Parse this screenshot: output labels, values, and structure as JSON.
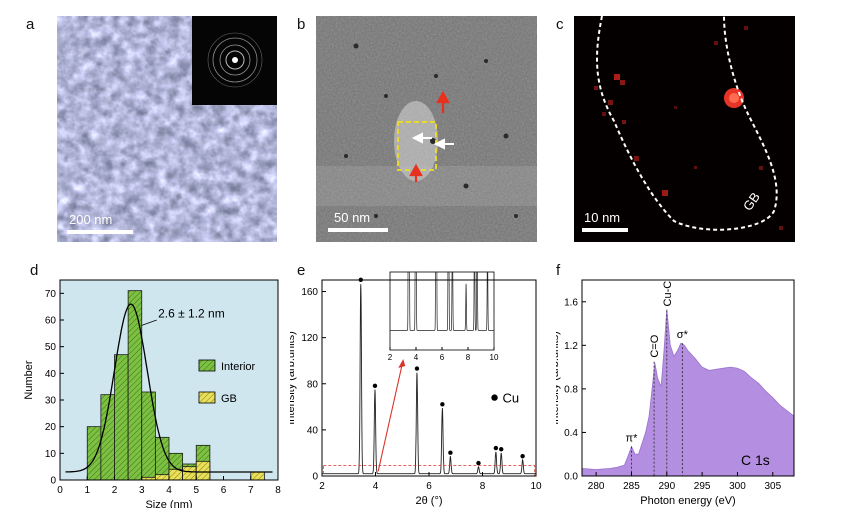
{
  "panels": {
    "a": {
      "label": "a",
      "scale_label": "200 nm"
    },
    "b": {
      "label": "b",
      "scale_label": "50 nm"
    },
    "c": {
      "label": "c",
      "scale_label": "10 nm",
      "gb_label": "GB"
    },
    "d": {
      "label": "d"
    },
    "e": {
      "label": "e"
    },
    "f": {
      "label": "f"
    }
  },
  "colors": {
    "bg_d": "#cfe6ef",
    "interior": "#7dc142",
    "gb": "#e8e05a",
    "purple": "#b48ee0",
    "red": "#d9342b"
  },
  "chart_data": [
    {
      "type": "bar",
      "panel": "d",
      "xlabel": "Size (nm)",
      "ylabel": "Number",
      "xlim": [
        0,
        8
      ],
      "ylim": [
        0,
        75
      ],
      "xticks": [
        0,
        1,
        2,
        3,
        4,
        5,
        6,
        7,
        8
      ],
      "yticks": [
        0,
        10,
        20,
        30,
        40,
        50,
        60,
        70
      ],
      "annotation": "2.6 ± 1.2 nm",
      "bin_width": 0.5,
      "bin_starts": [
        1.0,
        1.5,
        2.0,
        2.5,
        3.0,
        3.5,
        4.0,
        4.5,
        5.0,
        7.0
      ],
      "series": [
        {
          "name": "Interior",
          "values": [
            20,
            32,
            47,
            71,
            33,
            16,
            10,
            6,
            13,
            0
          ]
        },
        {
          "name": "GB",
          "values": [
            0,
            0,
            0,
            0,
            1,
            2,
            4,
            5,
            7,
            3
          ]
        }
      ],
      "fit": {
        "type": "gaussian",
        "mean": 2.6,
        "sigma": 0.6,
        "amplitude": 63,
        "baseline": 3
      }
    },
    {
      "type": "line",
      "panel": "e",
      "xlabel": "2θ (°)",
      "ylabel": "Intensity (arb.units)",
      "xlim": [
        2,
        10
      ],
      "ylim": [
        0,
        170
      ],
      "xticks": [
        2,
        4,
        6,
        8,
        10
      ],
      "yticks": [
        0,
        40,
        80,
        120,
        160
      ],
      "legend": "Cu",
      "peaks": [
        {
          "x": 3.45,
          "y": 165
        },
        {
          "x": 3.98,
          "y": 73
        },
        {
          "x": 5.55,
          "y": 88
        },
        {
          "x": 6.5,
          "y": 57
        },
        {
          "x": 6.8,
          "y": 15
        },
        {
          "x": 7.85,
          "y": 6
        },
        {
          "x": 8.5,
          "y": 19
        },
        {
          "x": 8.7,
          "y": 18
        },
        {
          "x": 9.5,
          "y": 12
        }
      ],
      "inset": {
        "xlim": [
          2,
          10
        ],
        "xticks": [
          2,
          4,
          6,
          8,
          10
        ],
        "peak_x": [
          3.45,
          3.98,
          5.55,
          6.5,
          6.8,
          7.85,
          8.5,
          8.7,
          9.5
        ]
      }
    },
    {
      "type": "area",
      "panel": "f",
      "xlabel": "Photon energy (eV)",
      "ylabel": "Intensity (arb.units)",
      "xlim": [
        278,
        308
      ],
      "ylim": [
        0,
        1.8
      ],
      "xticks": [
        280,
        285,
        290,
        295,
        300,
        305
      ],
      "yticks": [
        0.0,
        0.4,
        0.8,
        1.2,
        1.6
      ],
      "legend": "C 1s",
      "annotations": [
        {
          "text": "π*",
          "x": 285.0,
          "y": 0.27
        },
        {
          "text": "C=O",
          "x": 288.2,
          "y": 1.05
        },
        {
          "text": "Cu-C",
          "x": 290.0,
          "y": 1.52
        },
        {
          "text": "σ*",
          "x": 292.2,
          "y": 1.22
        }
      ],
      "x": [
        278,
        280,
        282,
        283,
        284,
        284.5,
        285,
        285.5,
        286,
        287,
        287.5,
        288,
        288.3,
        288.7,
        289.2,
        289.6,
        290,
        290.5,
        291,
        291.5,
        292,
        292.5,
        293,
        294,
        295,
        296,
        297,
        298,
        299,
        300,
        301,
        302,
        303,
        304,
        305,
        306,
        307,
        308
      ],
      "values": [
        0.07,
        0.06,
        0.07,
        0.08,
        0.1,
        0.18,
        0.27,
        0.2,
        0.2,
        0.4,
        0.55,
        0.85,
        1.04,
        0.9,
        0.82,
        1.15,
        1.53,
        1.2,
        1.1,
        1.15,
        1.22,
        1.2,
        1.15,
        1.08,
        1.0,
        0.97,
        0.98,
        0.99,
        1.0,
        0.99,
        0.96,
        0.9,
        0.85,
        0.78,
        0.72,
        0.65,
        0.6,
        0.55
      ]
    }
  ]
}
